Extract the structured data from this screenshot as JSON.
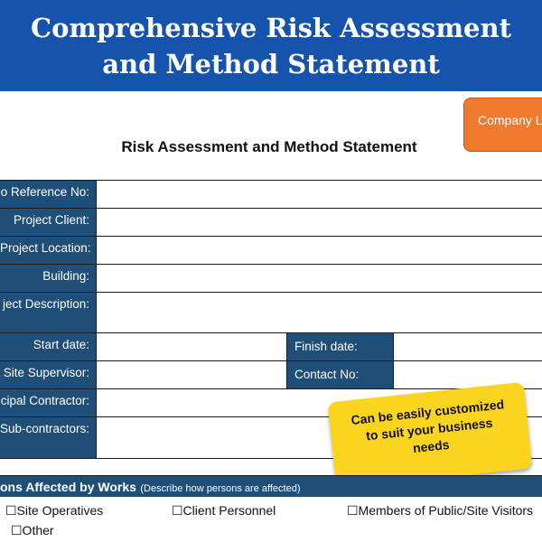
{
  "banner": {
    "line1": "Comprehensive Risk Assessment",
    "line2": "and Method Statement"
  },
  "logo_box": {
    "label": "Company L"
  },
  "document": {
    "title": "Risk Assessment and Method Statement"
  },
  "form": {
    "fields": [
      {
        "label": "o Reference No:"
      },
      {
        "label": "Project Client:"
      },
      {
        "label": "Project Location:"
      },
      {
        "label": "Building:"
      },
      {
        "label": "ject Description:"
      },
      {
        "label": "Start date:"
      },
      {
        "label": "Site Supervisor:"
      },
      {
        "label": "cipal Contractor:"
      },
      {
        "label": "Sub-contractors:"
      }
    ],
    "finish_date_label": "Finish date:",
    "contact_no_label": "Contact No:"
  },
  "callout": {
    "line1": "Can be easily customized",
    "line2": "to suit your business",
    "line3": "needs"
  },
  "persons_affected": {
    "heading": "ons Affected by Works",
    "note": "(Describe how persons are affected)",
    "options": [
      "☐Site Operatives",
      "☐Client Personnel",
      "☐Members of Public/Site Visitors",
      "☐Other"
    ]
  },
  "colors": {
    "banner": "#1653ad",
    "label_fill": "#1f4e79",
    "logo_box": "#f07b2d",
    "callout": "#fbd420"
  }
}
